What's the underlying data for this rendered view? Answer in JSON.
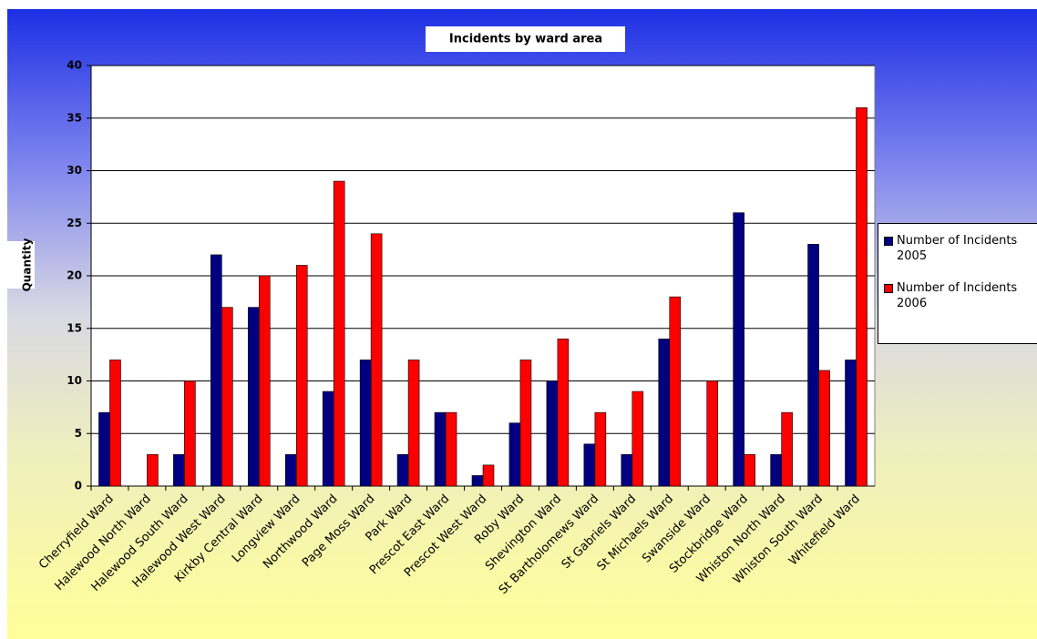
{
  "chart_data": {
    "type": "bar",
    "title": "Incidents by ward area",
    "y_label": "Quantity",
    "categories": [
      "Cherryfield Ward",
      "Halewood North Ward",
      "Halewood South Ward",
      "Halewood West Ward",
      "Kirkby Central Ward",
      "Longview Ward",
      "Northwood Ward",
      "Page Moss Ward",
      "Park Ward",
      "Prescot East Ward",
      "Prescot West Ward",
      "Roby Ward",
      "Shevington Ward",
      "St Bartholomews Ward",
      "St Gabriels Ward",
      "St Michaels Ward",
      "Swanside Ward",
      "Stockbridge Ward",
      "Whiston North Ward",
      "Whiston South Ward",
      "Whitefield Ward"
    ],
    "series": [
      {
        "name": "Number of Incidents 2005",
        "color": "#000080",
        "values": [
          7,
          0,
          3,
          22,
          17,
          3,
          9,
          12,
          3,
          7,
          1,
          6,
          10,
          4,
          3,
          14,
          0,
          26,
          3,
          23,
          12
        ]
      },
      {
        "name": "Number of Incidents 2006",
        "color": "#ff0000",
        "values": [
          12,
          3,
          10,
          17,
          20,
          21,
          29,
          24,
          12,
          7,
          2,
          12,
          14,
          7,
          9,
          18,
          10,
          3,
          7,
          11,
          36
        ]
      }
    ],
    "ylim": [
      0,
      40
    ],
    "yticks": [
      0,
      5,
      10,
      15,
      20,
      25,
      30,
      35,
      40
    ],
    "grid": true
  }
}
